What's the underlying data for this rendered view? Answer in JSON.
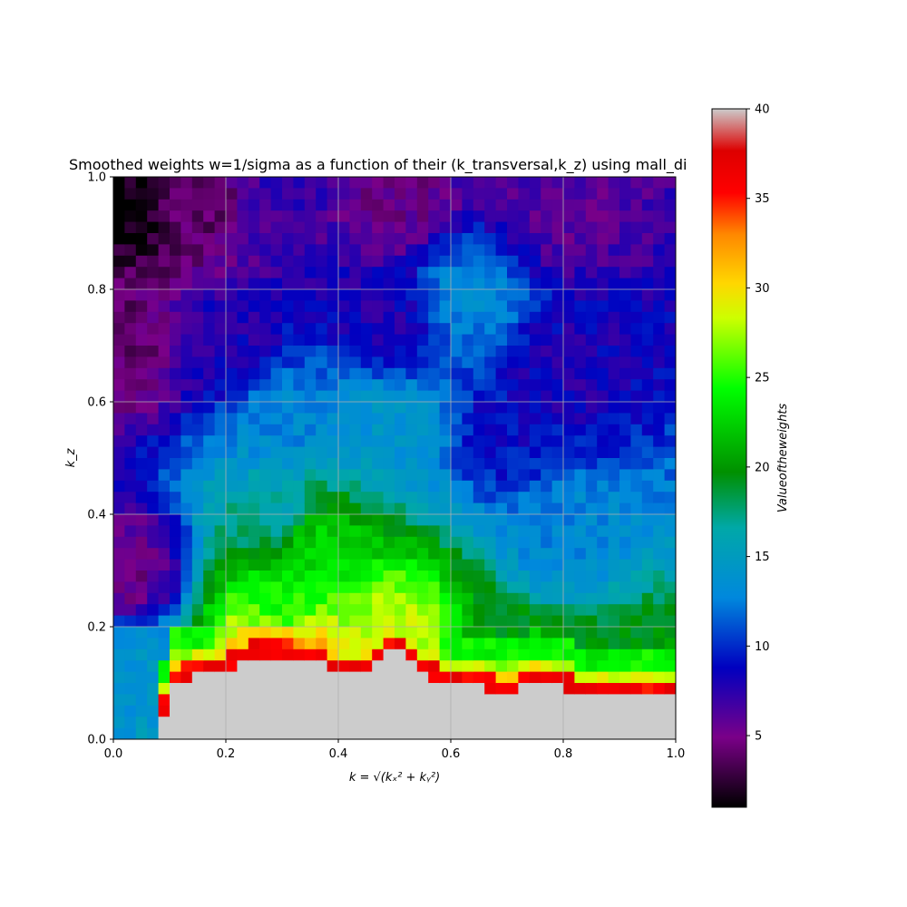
{
  "chart_data": {
    "type": "heatmap",
    "title": "Smoothed weights w=1/sigma as a function of their (k_transversal,k_z) using mall_di",
    "xlabel": "k = √(kₓ² + kᵧ²)",
    "ylabel": "k_z",
    "xlim": [
      0.0,
      1.0
    ],
    "ylim": [
      0.0,
      1.0
    ],
    "x_ticks": [
      "0.0",
      "0.2",
      "0.4",
      "0.6",
      "0.8",
      "1.0"
    ],
    "y_ticks": [
      "0.0",
      "0.2",
      "0.4",
      "0.6",
      "0.8",
      "1.0"
    ],
    "grid": true,
    "colormap": "nipy_spectral",
    "colorbar": {
      "label": "Valueoftheweights",
      "range": [
        1,
        40
      ],
      "ticks": [
        "5",
        "10",
        "15",
        "20",
        "25",
        "30",
        "35",
        "40"
      ]
    },
    "masked_color": "#cccccc",
    "grid_resolution": [
      50,
      50
    ],
    "masked_boundary": [
      {
        "k": 0.0,
        "kz": 0.0
      },
      {
        "k": 0.08,
        "kz": 0.0
      },
      {
        "k": 0.1,
        "kz": 0.1
      },
      {
        "k": 0.2,
        "kz": 0.12
      },
      {
        "k": 0.25,
        "kz": 0.15
      },
      {
        "k": 0.35,
        "kz": 0.14
      },
      {
        "k": 0.4,
        "kz": 0.12
      },
      {
        "k": 0.45,
        "kz": 0.12
      },
      {
        "k": 0.5,
        "kz": 0.16
      },
      {
        "k": 0.55,
        "kz": 0.12
      },
      {
        "k": 0.6,
        "kz": 0.09
      },
      {
        "k": 0.65,
        "kz": 0.09
      },
      {
        "k": 0.7,
        "kz": 0.08
      },
      {
        "k": 0.75,
        "kz": 0.1
      },
      {
        "k": 0.8,
        "kz": 0.09
      },
      {
        "k": 0.85,
        "kz": 0.07
      },
      {
        "k": 0.9,
        "kz": 0.07
      },
      {
        "k": 0.95,
        "kz": 0.07
      },
      {
        "k": 1.0,
        "kz": 0.08
      }
    ],
    "value_samples": [
      {
        "k": 0.02,
        "kz": 0.95,
        "weight": 1.5
      },
      {
        "k": 0.15,
        "kz": 0.95,
        "weight": 4
      },
      {
        "k": 0.3,
        "kz": 0.95,
        "weight": 7
      },
      {
        "k": 0.5,
        "kz": 0.95,
        "weight": 5
      },
      {
        "k": 0.8,
        "kz": 0.95,
        "weight": 6
      },
      {
        "k": 0.02,
        "kz": 0.7,
        "weight": 4
      },
      {
        "k": 0.2,
        "kz": 0.7,
        "weight": 8
      },
      {
        "k": 0.5,
        "kz": 0.75,
        "weight": 8
      },
      {
        "k": 0.62,
        "kz": 0.78,
        "weight": 13
      },
      {
        "k": 0.8,
        "kz": 0.65,
        "weight": 8
      },
      {
        "k": 0.3,
        "kz": 0.55,
        "weight": 13
      },
      {
        "k": 0.5,
        "kz": 0.55,
        "weight": 14
      },
      {
        "k": 0.7,
        "kz": 0.55,
        "weight": 9
      },
      {
        "k": 0.3,
        "kz": 0.4,
        "weight": 16
      },
      {
        "k": 0.35,
        "kz": 0.35,
        "weight": 23
      },
      {
        "k": 0.8,
        "kz": 0.35,
        "weight": 13
      },
      {
        "k": 0.3,
        "kz": 0.22,
        "weight": 24
      },
      {
        "k": 0.5,
        "kz": 0.18,
        "weight": 28
      },
      {
        "k": 0.7,
        "kz": 0.15,
        "weight": 20
      },
      {
        "k": 0.9,
        "kz": 0.12,
        "weight": 20
      },
      {
        "k": 0.02,
        "kz": 0.3,
        "weight": 5
      },
      {
        "k": 0.03,
        "kz": 0.12,
        "weight": 14
      },
      {
        "k": 0.3,
        "kz": 0.16,
        "weight": 36
      }
    ]
  }
}
